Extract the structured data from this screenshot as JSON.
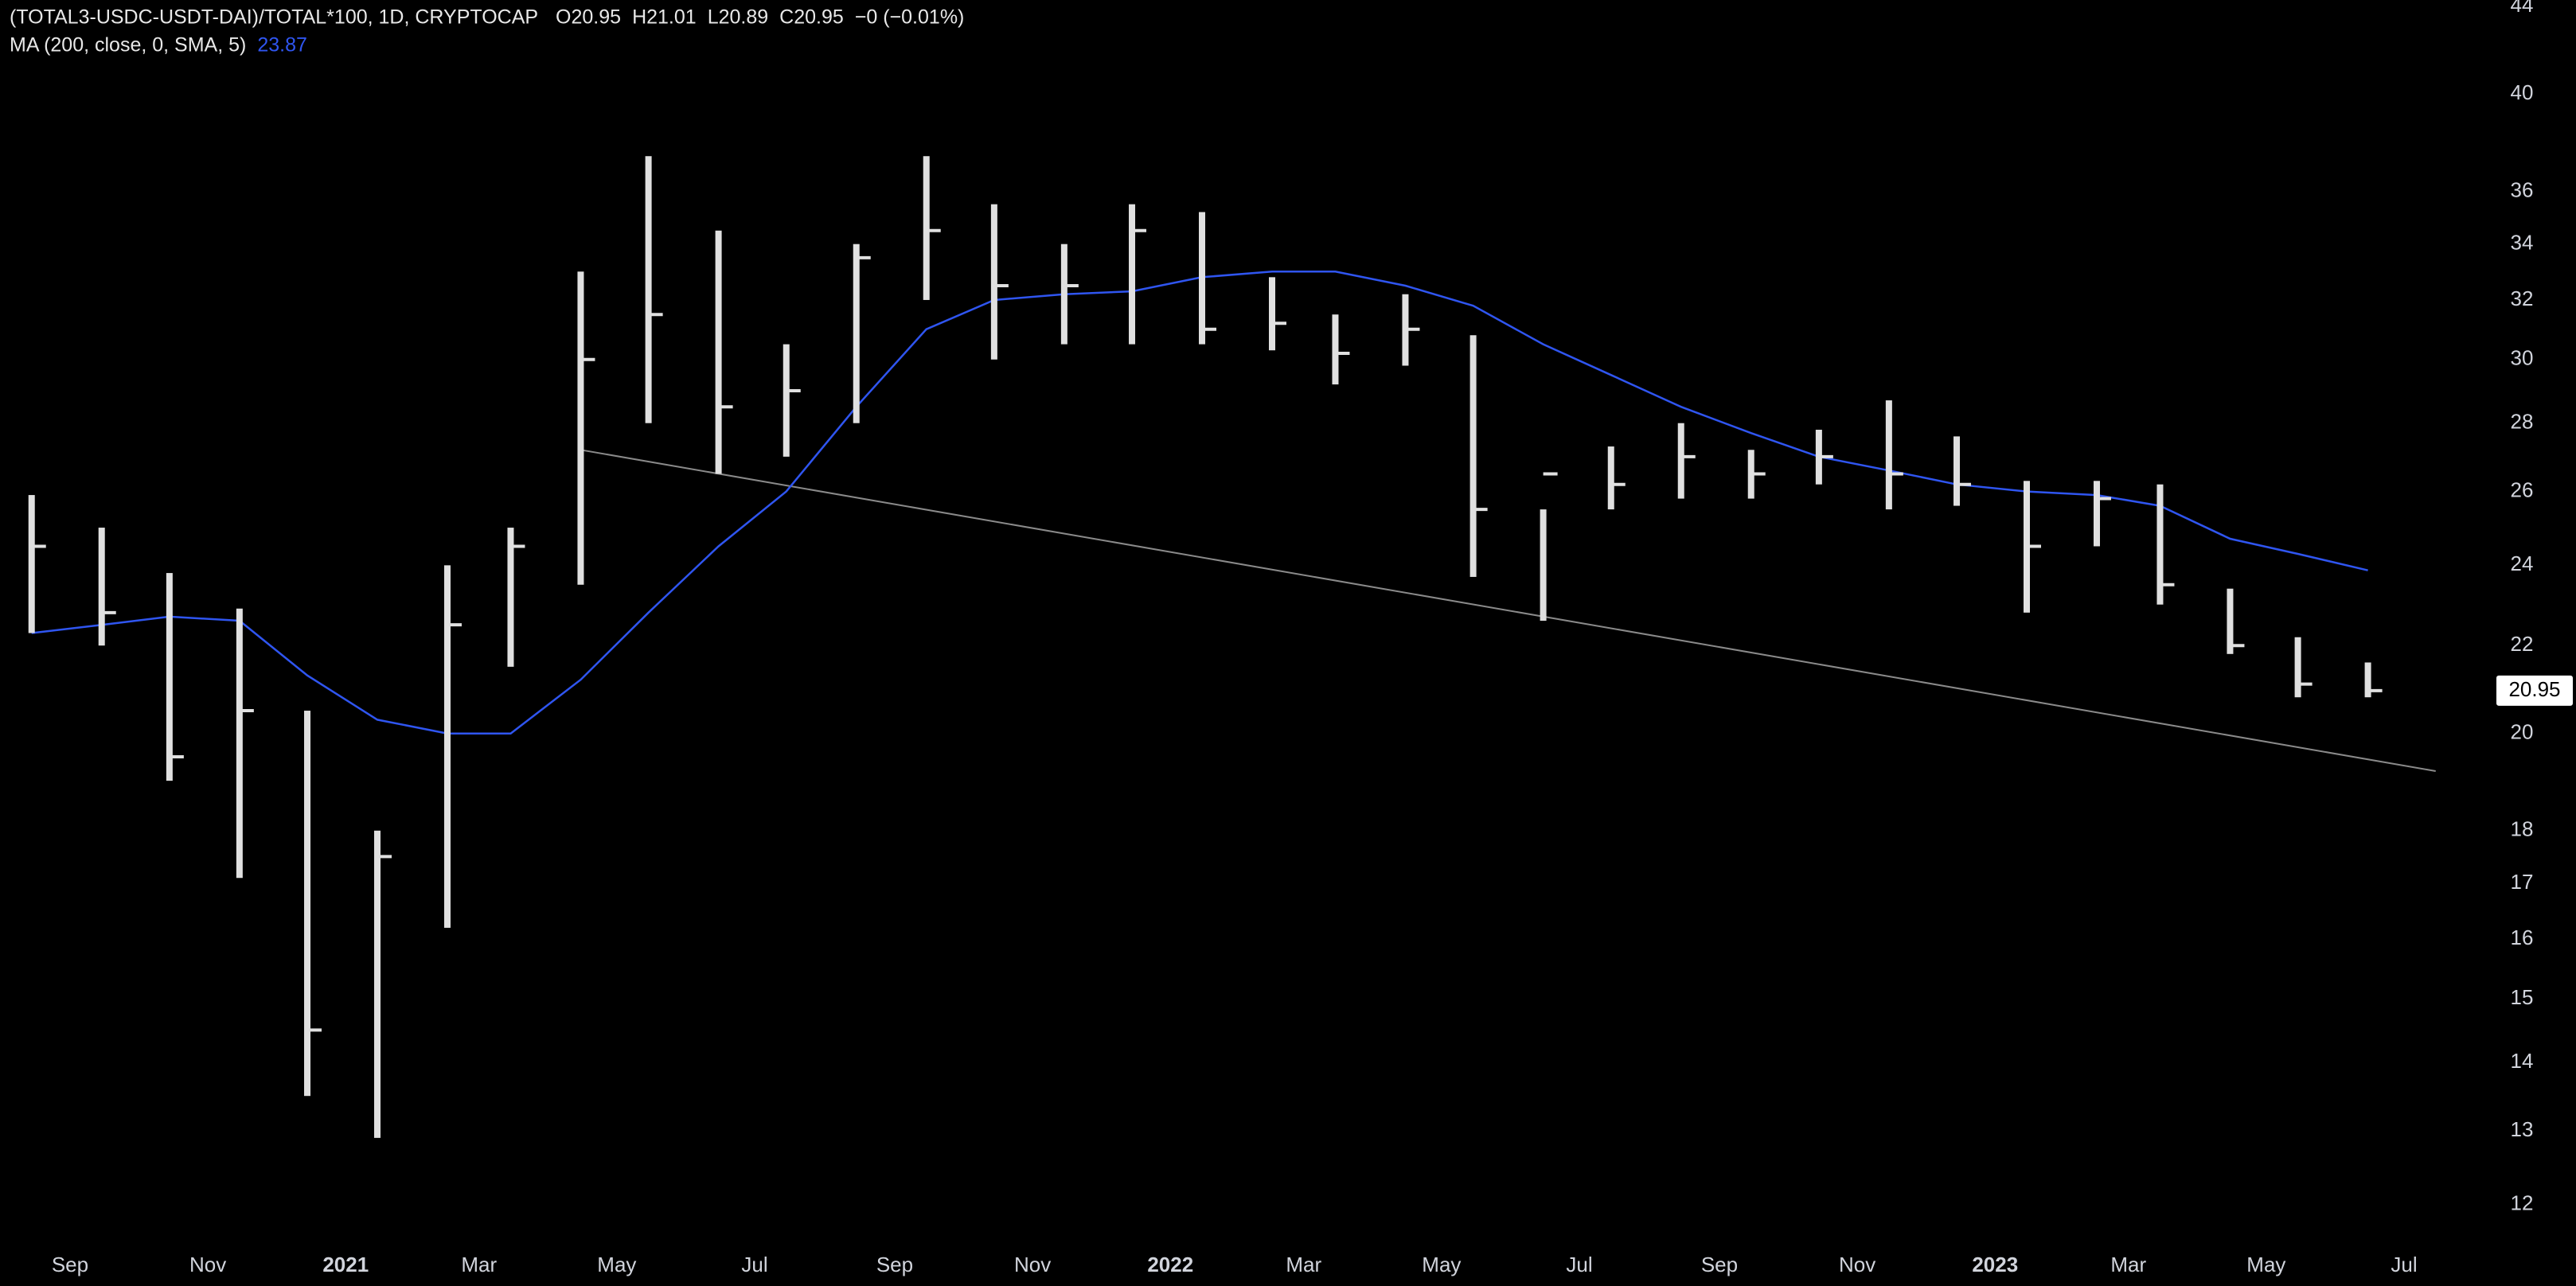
{
  "chart_data": {
    "type": "ohlc",
    "title": "(TOTAL3-USDC-USDT-DAI)/TOTAL*100, 1D, CRYPTOCAP",
    "ohlc_header": [
      "O20.95",
      "H21.01",
      "L20.89",
      "C20.95",
      "−0 (−0.01%)"
    ],
    "x": [
      "2020-08",
      "2020-09",
      "2020-10",
      "2020-11",
      "2020-12",
      "2021-01",
      "2021-02",
      "2021-03",
      "2021-04",
      "2021-05",
      "2021-06",
      "2021-07",
      "2021-08",
      "2021-09",
      "2021-10",
      "2021-11",
      "2021-12",
      "2022-01",
      "2022-02",
      "2022-03",
      "2022-04",
      "2022-05",
      "2022-06",
      "2022-07",
      "2022-08",
      "2022-09",
      "2022-10",
      "2022-11",
      "2022-12",
      "2023-01",
      "2023-02",
      "2023-03",
      "2023-04",
      "2023-05",
      "2023-06"
    ],
    "high": [
      25.9,
      25.0,
      23.8,
      22.9,
      20.5,
      18.0,
      24.0,
      25.0,
      33.0,
      37.4,
      34.5,
      30.5,
      34.0,
      37.4,
      35.5,
      34.0,
      35.5,
      35.2,
      32.8,
      31.5,
      32.2,
      30.8,
      25.5,
      27.3,
      28.0,
      27.2,
      27.8,
      28.7,
      27.6,
      26.3,
      26.3,
      26.2,
      23.4,
      22.2,
      21.6
    ],
    "low": [
      22.3,
      22.0,
      19.0,
      17.1,
      13.5,
      12.9,
      16.2,
      21.5,
      23.5,
      28.0,
      26.5,
      27.0,
      28.0,
      32.0,
      30.0,
      30.5,
      30.5,
      30.5,
      30.3,
      29.2,
      29.8,
      23.7,
      22.6,
      25.5,
      25.8,
      25.8,
      26.2,
      25.5,
      25.6,
      22.8,
      24.5,
      23.0,
      21.8,
      20.8,
      20.8
    ],
    "close": [
      24.5,
      22.8,
      19.5,
      20.5,
      14.5,
      17.5,
      22.5,
      24.5,
      30.0,
      31.5,
      28.5,
      29.0,
      33.5,
      34.5,
      32.5,
      32.5,
      34.5,
      31.0,
      31.2,
      30.2,
      31.0,
      25.5,
      26.5,
      26.2,
      27.0,
      26.5,
      27.0,
      26.5,
      26.2,
      24.5,
      25.8,
      23.5,
      22.0,
      21.1,
      20.95
    ],
    "color": "#e0e0e0",
    "ma": {
      "name": "MA (200, close, 0, SMA, 5)",
      "color": "#2f55f0",
      "values": [
        22.3,
        22.5,
        22.7,
        22.6,
        21.3,
        20.3,
        20.0,
        20.0,
        21.2,
        22.8,
        24.5,
        26.0,
        28.5,
        31.0,
        32.0,
        32.2,
        32.3,
        32.8,
        33.0,
        33.0,
        32.5,
        31.8,
        30.5,
        29.5,
        28.5,
        27.7,
        27.0,
        26.6,
        26.2,
        26.0,
        25.9,
        25.6,
        24.7,
        24.3,
        23.87
      ]
    },
    "trendline": {
      "x": [
        "2021-04",
        "2023-07"
      ],
      "values": [
        27.2,
        19.2
      ],
      "color": "#8a8a8a"
    },
    "log_scale": true,
    "ylim": [
      11.55,
      44.3
    ],
    "yticks": [
      12,
      13,
      14,
      15,
      16,
      17,
      18,
      20,
      22,
      24,
      26,
      28,
      30,
      32,
      34,
      36,
      40,
      44
    ],
    "xlim": [
      "2020-08",
      "2023-08"
    ],
    "xticks": [
      {
        "value": "2020-09",
        "label": "Sep"
      },
      {
        "value": "2020-11",
        "label": "Nov"
      },
      {
        "value": "2021-01",
        "label": "2021"
      },
      {
        "value": "2021-03",
        "label": "Mar"
      },
      {
        "value": "2021-05",
        "label": "May"
      },
      {
        "value": "2021-07",
        "label": "Jul"
      },
      {
        "value": "2021-09",
        "label": "Sep"
      },
      {
        "value": "2021-11",
        "label": "Nov"
      },
      {
        "value": "2022-01",
        "label": "2022"
      },
      {
        "value": "2022-03",
        "label": "Mar"
      },
      {
        "value": "2022-05",
        "label": "May"
      },
      {
        "value": "2022-07",
        "label": "Jul"
      },
      {
        "value": "2022-09",
        "label": "Sep"
      },
      {
        "value": "2022-11",
        "label": "Nov"
      },
      {
        "value": "2023-01",
        "label": "2023"
      },
      {
        "value": "2023-03",
        "label": "Mar"
      },
      {
        "value": "2023-05",
        "label": "May"
      },
      {
        "value": "2023-07",
        "label": "Jul"
      }
    ]
  }
}
